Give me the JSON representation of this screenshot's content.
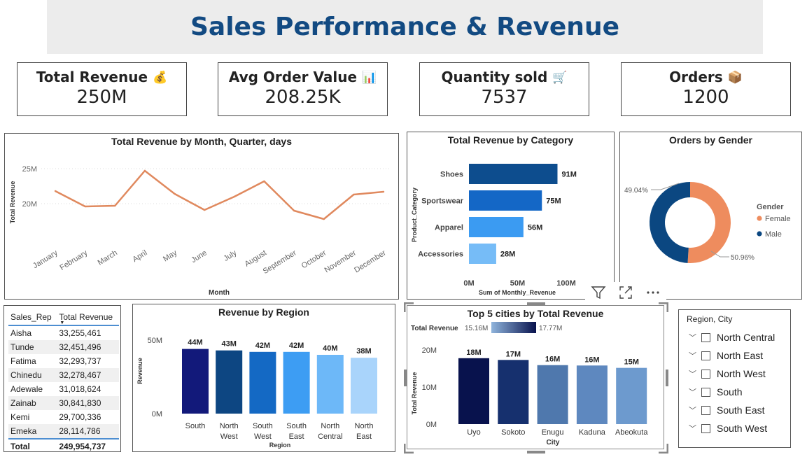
{
  "title": "Sales Performance & Revenue",
  "cards": [
    {
      "label": "Total Revenue",
      "emoji": "💰",
      "value": "250M"
    },
    {
      "label": "Avg Order Value",
      "emoji": "📊",
      "value": "208.25K"
    },
    {
      "label": "Quantity sold",
      "emoji": "🛒",
      "value": "7537"
    },
    {
      "label": "Orders",
      "emoji": "📦",
      "value": "1200"
    }
  ],
  "colors": {
    "title": "#124a82",
    "line": "#e0895e",
    "female": "#ee8c5e",
    "male": "#0b4781"
  },
  "chart_data": [
    {
      "type": "line",
      "title": "Total Revenue by Month, Quarter, days",
      "xlabel": "Month",
      "ylabel": "Total Revenue",
      "categories": [
        "January",
        "February",
        "March",
        "April",
        "May",
        "June",
        "July",
        "August",
        "September",
        "October",
        "November",
        "December"
      ],
      "values": [
        21.8,
        19.6,
        19.7,
        24.7,
        21.4,
        19.1,
        21.0,
        23.2,
        19.0,
        17.8,
        21.3,
        21.7
      ],
      "ylim": [
        15,
        27
      ],
      "yticks": [
        {
          "v": 20,
          "label": "20M"
        },
        {
          "v": 25,
          "label": "25M"
        }
      ],
      "grid": true
    },
    {
      "type": "bar",
      "orientation": "horizontal",
      "title": "Total Revenue by Category",
      "xlabel": "Sum of Monthly_Revenue",
      "ylabel": "Product_Category",
      "categories": [
        "Shoes",
        "Sportswear",
        "Apparel",
        "Accessories"
      ],
      "values": [
        91,
        75,
        56,
        28
      ],
      "data_labels": [
        "91M",
        "75M",
        "56M",
        "28M"
      ],
      "colors": [
        "#0d4d8e",
        "#1467c6",
        "#3b9bf2",
        "#76bcf7"
      ],
      "xlim": [
        0,
        100
      ],
      "xticks": [
        {
          "v": 0,
          "label": "0M"
        },
        {
          "v": 50,
          "label": "50M"
        },
        {
          "v": 100,
          "label": "100M"
        }
      ]
    },
    {
      "type": "pie",
      "donut": true,
      "title": "Orders by Gender",
      "legend_title": "Gender",
      "legend_position": "right",
      "slices": [
        {
          "name": "Female",
          "value": 50.96,
          "label": "50.96%"
        },
        {
          "name": "Male",
          "value": 49.04,
          "label": "49.04%"
        }
      ]
    },
    {
      "type": "bar",
      "title": "Revenue by Region",
      "xlabel": "Region",
      "ylabel": "Revenue",
      "categories": [
        [
          "South"
        ],
        [
          "North",
          "West"
        ],
        [
          "South",
          "West"
        ],
        [
          "South",
          "East"
        ],
        [
          "North",
          "Central"
        ],
        [
          "North",
          "East"
        ]
      ],
      "values": [
        44,
        43,
        42,
        42,
        40,
        38
      ],
      "data_labels": [
        "44M",
        "43M",
        "42M",
        "42M",
        "40M",
        "38M"
      ],
      "colors": [
        "#12197a",
        "#0d4682",
        "#1469c4",
        "#3d9df3",
        "#6db8f8",
        "#a9d4fb"
      ],
      "ylim": [
        0,
        50
      ],
      "yticks": [
        {
          "v": 0,
          "label": "0M"
        },
        {
          "v": 50,
          "label": "50M"
        }
      ]
    },
    {
      "type": "bar",
      "title": "Top 5 cities by Total Revenue",
      "xlabel": "City",
      "ylabel": "Total Revenue",
      "legend_label": "Total Revenue",
      "legend_min": "15.16M",
      "legend_max": "17.77M",
      "categories": [
        "Uyo",
        "Sokoto",
        "Enugu",
        "Kaduna",
        "Abeokuta"
      ],
      "values": [
        17.77,
        17.3,
        15.9,
        15.8,
        15.16
      ],
      "data_labels": [
        "18M",
        "17M",
        "16M",
        "16M",
        "15M"
      ],
      "colors": [
        "#08124d",
        "#16306e",
        "#4f78ad",
        "#5e88bf",
        "#6d9ace"
      ],
      "ylim": [
        0,
        20
      ],
      "yticks": [
        {
          "v": 0,
          "label": "0M"
        },
        {
          "v": 10,
          "label": "10M"
        },
        {
          "v": 20,
          "label": "20M"
        }
      ]
    }
  ],
  "table": {
    "headers": [
      "Sales_Rep",
      "Total Revenue"
    ],
    "rows": [
      [
        "Aisha",
        "33,255,461"
      ],
      [
        "Tunde",
        "32,451,496"
      ],
      [
        "Fatima",
        "32,293,737"
      ],
      [
        "Chinedu",
        "32,278,467"
      ],
      [
        "Adewale",
        "31,018,624"
      ],
      [
        "Zainab",
        "30,841,830"
      ],
      [
        "Kemi",
        "29,700,336"
      ],
      [
        "Emeka",
        "28,114,786"
      ]
    ],
    "total": [
      "Total",
      "249,954,737"
    ]
  },
  "slicer": {
    "title": "Region, City",
    "items": [
      "North Central",
      "North East",
      "North West",
      "South",
      "South East",
      "South West"
    ]
  },
  "icons": {
    "filter": "filter-icon",
    "focus": "focus-mode-icon",
    "more": "more-options-icon"
  }
}
